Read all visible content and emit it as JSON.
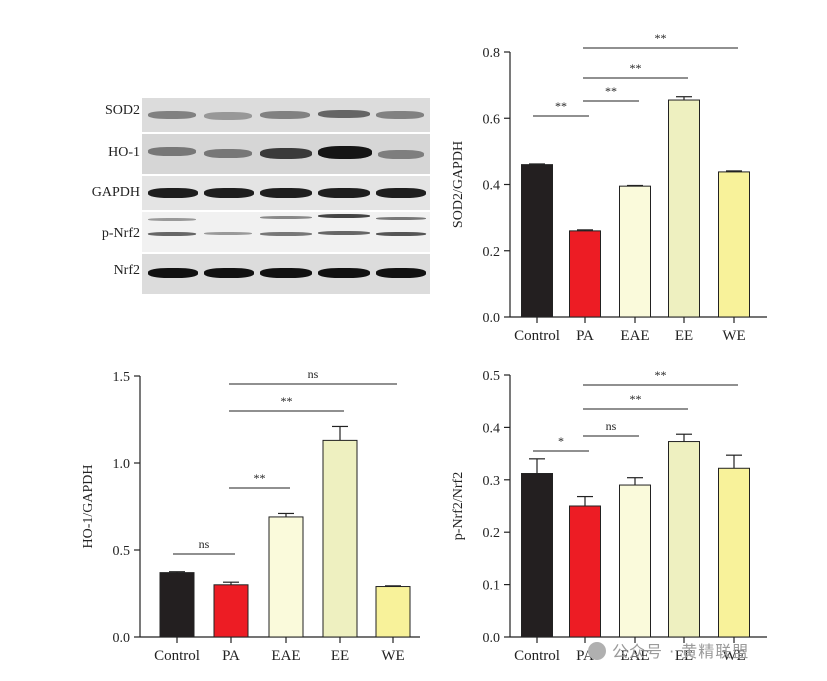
{
  "blot": {
    "labels": [
      "SOD2",
      "HO-1",
      "GAPDH",
      "p-Nrf2",
      "Nrf2"
    ]
  },
  "chart_data": [
    {
      "type": "bar",
      "categories": [
        "Control",
        "PA",
        "EAE",
        "EE",
        "WE"
      ],
      "values": [
        0.46,
        0.26,
        0.395,
        0.655,
        0.438
      ],
      "errors": [
        0.002,
        0.003,
        0.002,
        0.01,
        0.003
      ],
      "ylabel": "SOD2/GAPDH",
      "ylim": [
        0,
        0.8
      ],
      "yticks": [
        "0.0",
        "0.2",
        "0.4",
        "0.6",
        "0.8"
      ],
      "significance": [
        {
          "from": "Control",
          "to": "PA",
          "label": "**"
        },
        {
          "from": "PA",
          "to": "EAE",
          "label": "**"
        },
        {
          "from": "PA",
          "to": "EE",
          "label": "**"
        },
        {
          "from": "PA",
          "to": "WE",
          "label": "**"
        }
      ]
    },
    {
      "type": "bar",
      "categories": [
        "Control",
        "PA",
        "EAE",
        "EE",
        "WE"
      ],
      "values": [
        0.37,
        0.3,
        0.69,
        1.13,
        0.29
      ],
      "errors": [
        0.005,
        0.015,
        0.02,
        0.08,
        0.004
      ],
      "ylabel": "HO-1/GAPDH",
      "ylim": [
        0,
        1.5
      ],
      "yticks": [
        "0.0",
        "0.5",
        "1.0",
        "1.5"
      ],
      "significance": [
        {
          "from": "Control",
          "to": "PA",
          "label": "ns"
        },
        {
          "from": "PA",
          "to": "EAE",
          "label": "**"
        },
        {
          "from": "PA",
          "to": "EE",
          "label": "**"
        },
        {
          "from": "PA",
          "to": "WE",
          "label": "ns"
        }
      ]
    },
    {
      "type": "bar",
      "categories": [
        "Control",
        "PA",
        "EAE",
        "EE",
        "WE"
      ],
      "values": [
        0.312,
        0.25,
        0.29,
        0.373,
        0.322
      ],
      "errors": [
        0.028,
        0.018,
        0.014,
        0.014,
        0.025
      ],
      "ylabel": "p-Nrf2/Nrf2",
      "ylim": [
        0,
        0.5
      ],
      "yticks": [
        "0.0",
        "0.1",
        "0.2",
        "0.3",
        "0.4",
        "0.5"
      ],
      "significance": [
        {
          "from": "Control",
          "to": "PA",
          "label": "*"
        },
        {
          "from": "PA",
          "to": "EAE",
          "label": "ns"
        },
        {
          "from": "PA",
          "to": "EE",
          "label": "**"
        },
        {
          "from": "PA",
          "to": "WE",
          "label": "**"
        }
      ]
    }
  ],
  "colors": {
    "Control": "#231f20",
    "PA": "#ed1c24",
    "EAE": "#fafadb",
    "EE": "#eef0c0",
    "WE": "#f8f29a"
  },
  "watermark": "公众号 · 黄精联盟"
}
